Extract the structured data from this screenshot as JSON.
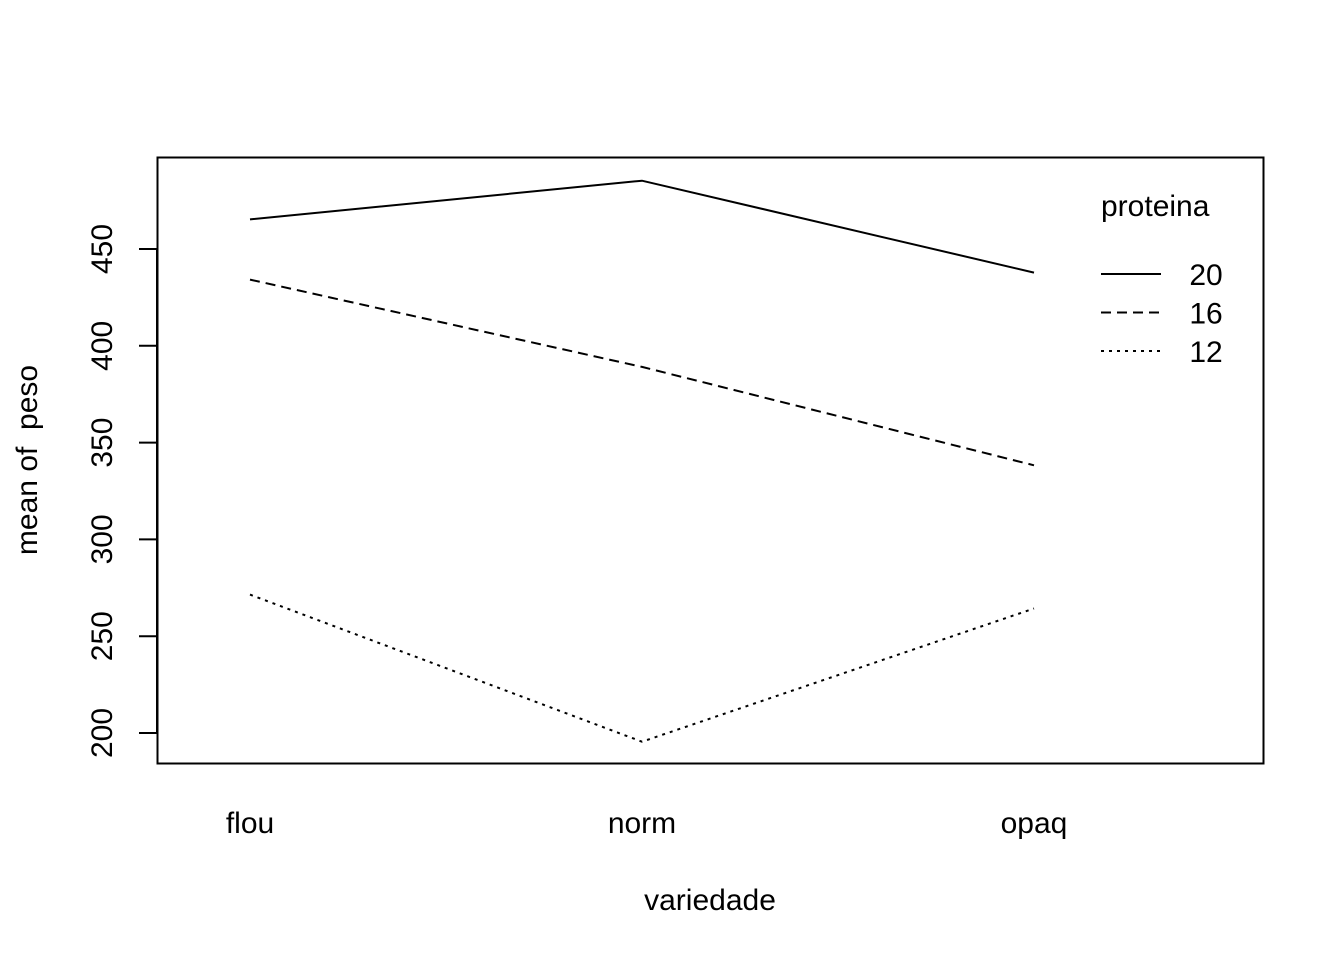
{
  "chart_data": {
    "type": "line",
    "title": "",
    "xlabel": "variedade",
    "ylabel": "mean of  peso",
    "categories": [
      "flou",
      "norm",
      "opaq"
    ],
    "yticks": [
      "200",
      "250",
      "300",
      "350",
      "400",
      "450"
    ],
    "ylim": [
      184,
      498
    ],
    "grid": false,
    "legend": {
      "title": "proteina",
      "position": "top-right",
      "entries": [
        "20",
        "16",
        "12"
      ]
    },
    "series": [
      {
        "name": "20",
        "line_style": "solid",
        "values": [
          465.3,
          485.3,
          437.8
        ]
      },
      {
        "name": "16",
        "line_style": "dashed",
        "values": [
          434.2,
          389.1,
          338.3
        ]
      },
      {
        "name": "12",
        "line_style": "dotted",
        "values": [
          271.5,
          195.5,
          264.3
        ]
      }
    ]
  }
}
